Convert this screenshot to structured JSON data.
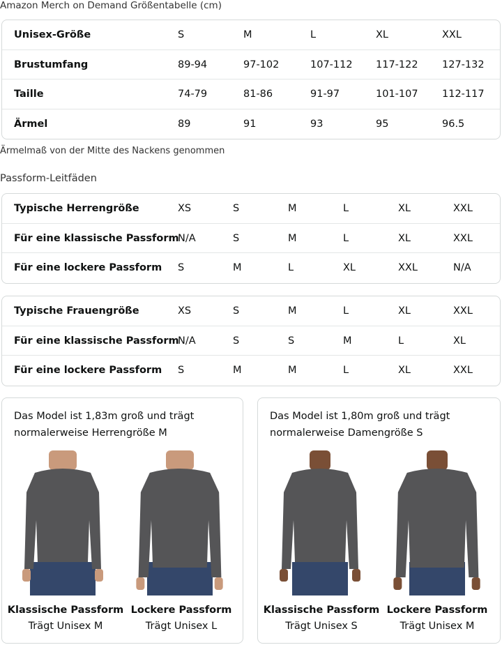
{
  "title": "Amazon Merch on Demand Größentabelle (cm)",
  "size_table": {
    "rows": [
      [
        "Unisex-Größe",
        "S",
        "M",
        "L",
        "XL",
        "XXL"
      ],
      [
        "Brustumfang",
        "89-94",
        "97-102",
        "107-112",
        "117-122",
        "127-132"
      ],
      [
        "Taille",
        "74-79",
        "81-86",
        "91-97",
        "101-107",
        "112-117"
      ],
      [
        "Ärmel",
        "89",
        "91",
        "93",
        "95",
        "96.5"
      ]
    ]
  },
  "note": "Ärmelmaß von der Mitte des Nackens genommen",
  "fit_title": "Passform-Leitfäden",
  "men_table": {
    "rows": [
      [
        "Typische Herrengröße",
        "XS",
        "S",
        "M",
        "L",
        "XL",
        "XXL"
      ],
      [
        "Für eine klassische Passform",
        "N/A",
        "S",
        "M",
        "L",
        "XL",
        "XXL"
      ],
      [
        "Für eine lockere Passform",
        "S",
        "M",
        "L",
        "XL",
        "XXL",
        "N/A"
      ]
    ]
  },
  "women_table": {
    "rows": [
      [
        "Typische Frauengröße",
        "XS",
        "S",
        "M",
        "L",
        "XL",
        "XXL"
      ],
      [
        "Für eine klassische Passform",
        "N/A",
        "S",
        "S",
        "M",
        "L",
        "XL"
      ],
      [
        "Für eine lockere Passform",
        "S",
        "M",
        "M",
        "L",
        "XL",
        "XXL"
      ]
    ]
  },
  "cards": [
    {
      "text": "Das Model ist 1,83m groß und trägt normalerweise Herrengröße M",
      "figures": [
        {
          "title": "Klassische Passform",
          "sub": "Trägt Unisex M"
        },
        {
          "title": "Lockere Passform",
          "sub": "Trägt Unisex L"
        }
      ]
    },
    {
      "text": "Das Model ist 1,80m groß und trägt normalerweise Damengröße S",
      "figures": [
        {
          "title": "Klassische Passform",
          "sub": "Trägt Unisex S"
        },
        {
          "title": "Lockere Passform",
          "sub": "Trägt Unisex M"
        }
      ]
    }
  ],
  "colors": {
    "sweater": "#555557",
    "jeans": "#34476a",
    "skin": "#c99a7c",
    "skin_dark": "#7a4f36"
  }
}
